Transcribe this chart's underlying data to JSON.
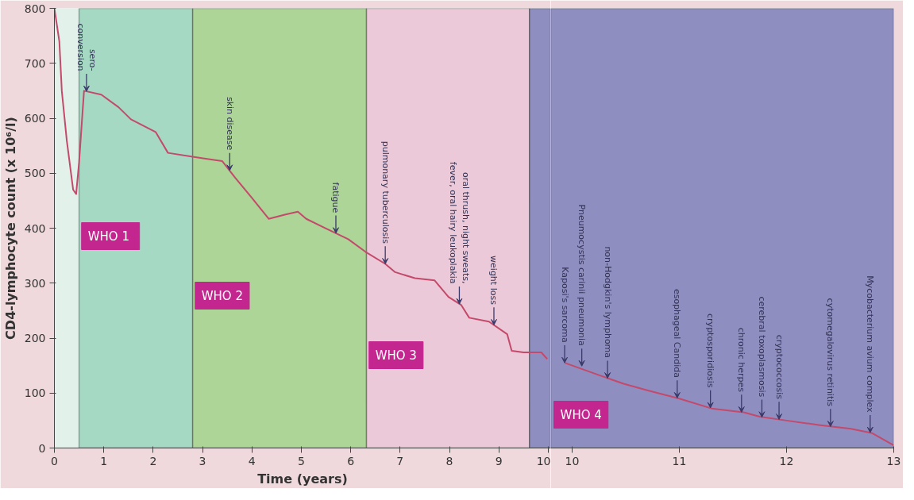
{
  "chart_data": [
    {
      "type": "line",
      "xlabel": "Time (years)",
      "ylabel": "CD4-lymphocyte count (x 10⁶/l)",
      "xlim": [
        0,
        10.05
      ],
      "ylim": [
        0,
        800
      ],
      "xticks": [
        0,
        1,
        2,
        3,
        4,
        5,
        6,
        7,
        8,
        9,
        10
      ],
      "yticks": [
        0,
        100,
        200,
        300,
        400,
        500,
        600,
        700,
        800
      ],
      "series": [
        {
          "color": "#c4496a",
          "x": [
            0,
            0.1,
            0.15,
            0.25,
            0.38,
            0.44,
            0.5,
            0.6,
            0.95,
            1.3,
            1.55,
            2.05,
            2.3,
            2.8,
            3.4,
            3.66,
            4.0,
            4.34,
            4.68,
            4.93,
            5.1,
            5.44,
            5.95,
            6.3,
            6.7,
            6.9,
            7.3,
            7.7,
            7.98,
            8.24,
            8.4,
            8.8,
            9.17,
            9.26,
            9.5,
            9.86,
            9.98
          ],
          "values": [
            800,
            740,
            650,
            560,
            470,
            462,
            520,
            650,
            643,
            620,
            598,
            575,
            537,
            530,
            522,
            492,
            455,
            417,
            425,
            430,
            417,
            402,
            380,
            357,
            335,
            320,
            309,
            305,
            275,
            260,
            237,
            230,
            207,
            177,
            174,
            174,
            162
          ]
        }
      ],
      "bands": [
        {
          "axis": "x",
          "from": 0.5,
          "to": 2.8,
          "label": "WHO  1",
          "color": "#9fd6c0"
        },
        {
          "axis": "x",
          "from": 2.8,
          "to": 6.32,
          "label": "WHO 2",
          "color": "#a6d28e"
        },
        {
          "axis": "x",
          "from": 6.32,
          "to": 9.62,
          "label": "WHO 3",
          "color": "#ecc4d6"
        },
        {
          "axis": "x",
          "from": 9.62,
          "to": 10.05,
          "color": "#8683bd"
        }
      ],
      "annotations": [
        {
          "text": "sero-\nconversion",
          "x": 0.65,
          "y": 649
        },
        {
          "text": "skin disease",
          "x": 3.55,
          "y": 505
        },
        {
          "text": "fatigue",
          "x": 5.7,
          "y": 391
        },
        {
          "text": "pulmonary tuberculosis",
          "x": 6.7,
          "y": 335
        },
        {
          "text": "oral thrush, night sweats,\nfever, oral hairy leukoplakia",
          "x": 8.2,
          "y": 262
        },
        {
          "text": "weight loss",
          "x": 8.9,
          "y": 224
        }
      ]
    },
    {
      "type": "line",
      "xlim": [
        9.8,
        13
      ],
      "ylim": [
        0,
        800
      ],
      "xticks": [
        10,
        11,
        12,
        13
      ],
      "yticks": [
        0,
        100,
        200,
        300,
        400,
        500,
        600,
        700,
        800
      ],
      "tick_labels": "x",
      "series": [
        {
          "color": "#c4496a",
          "x": [
            9.93,
            10.26,
            10.48,
            10.7,
            11.0,
            11.3,
            11.6,
            11.75,
            12.0,
            12.3,
            12.6,
            12.8,
            13.0
          ],
          "values": [
            155,
            132,
            117,
            105,
            90,
            72,
            65,
            57,
            50,
            42,
            35,
            27,
            5
          ]
        }
      ],
      "bands": [
        {
          "axis": "x",
          "from": 9.8,
          "to": 13,
          "label": "WHO 4",
          "color": "#8683bd"
        }
      ],
      "annotations": [
        {
          "text": "Kaposi's sarcoma",
          "x": 9.93,
          "y": 155
        },
        {
          "text": "Pneumocystis carinii pneumonia",
          "x": 10.09,
          "y": 149
        },
        {
          "text": "non-Hodgkin's lymphoma",
          "x": 10.33,
          "y": 127
        },
        {
          "text": "esophageal Candida",
          "x": 10.98,
          "y": 91
        },
        {
          "text": "cryptosporidiosis",
          "x": 11.29,
          "y": 73
        },
        {
          "text": "chronic herpes",
          "x": 11.58,
          "y": 65
        },
        {
          "text": "cerebral toxoplasmosis",
          "x": 11.77,
          "y": 56
        },
        {
          "text": "cryptococcosis",
          "x": 11.93,
          "y": 52
        },
        {
          "text": "cytomegalovirus retinitis",
          "x": 12.41,
          "y": 39
        },
        {
          "text": "Mycobacterium avium complex",
          "x": 12.78,
          "y": 28
        }
      ]
    }
  ]
}
